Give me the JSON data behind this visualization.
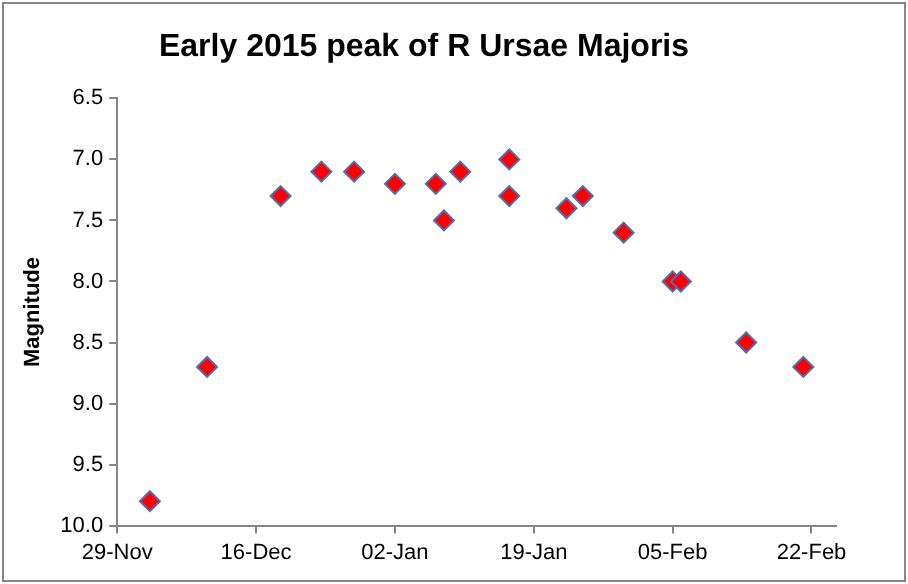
{
  "chart_data": {
    "type": "scatter",
    "title": "Early 2015 peak of R Ursae Majoris",
    "ylabel": "Magnitude",
    "x": [
      "2014-12-03",
      "2014-12-10",
      "2014-12-19",
      "2014-12-24",
      "2014-12-28",
      "2015-01-02",
      "2015-01-07",
      "2015-01-08",
      "2015-01-10",
      "2015-01-16",
      "2015-01-16",
      "2015-01-23",
      "2015-01-25",
      "2015-01-30",
      "2015-02-05",
      "2015-02-06",
      "2015-02-14",
      "2015-02-21"
    ],
    "values": [
      9.8,
      8.7,
      7.3,
      7.1,
      7.1,
      7.2,
      7.2,
      7.5,
      7.1,
      7.0,
      7.3,
      7.4,
      7.3,
      7.6,
      8.0,
      8.0,
      8.5,
      8.7
    ],
    "color": "#ff0000",
    "marker": "diamond",
    "grid": false,
    "legend": false,
    "ylim": [
      10.0,
      6.5
    ],
    "yticks": [
      {
        "value": 6.5,
        "label": "6.5"
      },
      {
        "value": 7,
        "label": "7.0"
      },
      {
        "value": 7.5,
        "label": "7.5"
      },
      {
        "value": 8,
        "label": "8.0"
      },
      {
        "value": 8.5,
        "label": "8.5"
      },
      {
        "value": 9,
        "label": "9.0"
      },
      {
        "value": 9.5,
        "label": "9.5"
      },
      {
        "value": 10,
        "label": "10.0"
      }
    ],
    "xlim": [
      "2014-11-29",
      "2015-02-25"
    ],
    "xticks": [
      {
        "value": "2014-11-29",
        "label": "29-Nov"
      },
      {
        "value": "2014-12-16",
        "label": "16-Dec"
      },
      {
        "value": "2015-01-02",
        "label": "02-Jan"
      },
      {
        "value": "2015-01-19",
        "label": "19-Jan"
      },
      {
        "value": "2015-02-05",
        "label": "05-Feb"
      },
      {
        "value": "2015-02-22",
        "label": "22-Feb"
      }
    ]
  }
}
